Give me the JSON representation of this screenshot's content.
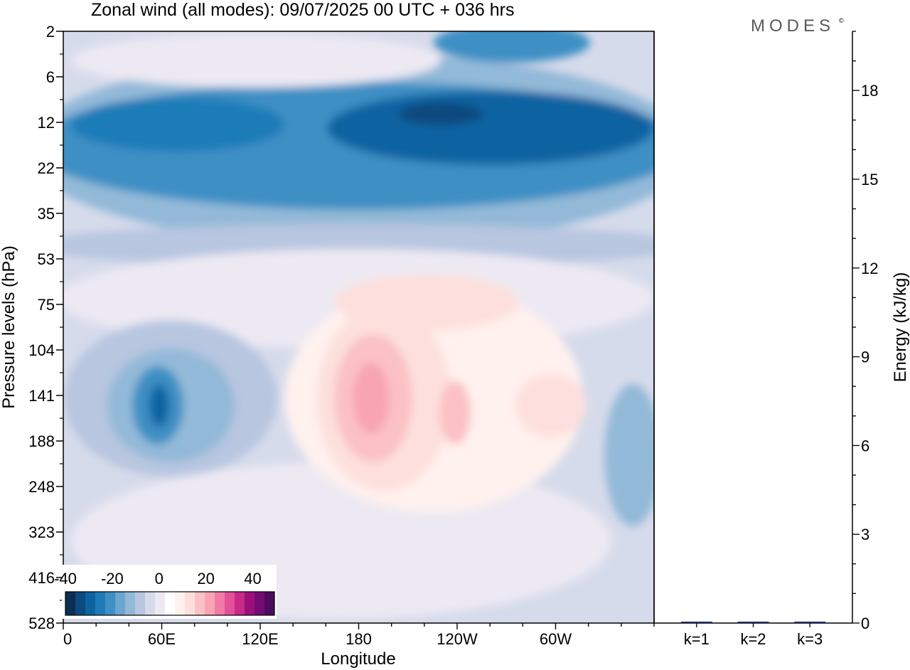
{
  "title": "Zonal wind (all modes):  09/07/2025  00 UTC  + 036 hrs",
  "brand": "MODES",
  "brand_mark": "©",
  "chart_data": [
    {
      "type": "heatmap",
      "title": "Zonal wind (all modes):  09/07/2025  00 UTC  + 036 hrs",
      "xlabel": "Longitude",
      "ylabel": "Pressure levels (hPa)",
      "x_ticks": [
        {
          "lon": 0,
          "label": "0"
        },
        {
          "lon": 60,
          "label": "60E"
        },
        {
          "lon": 120,
          "label": "120E"
        },
        {
          "lon": 180,
          "label": "180"
        },
        {
          "lon": 240,
          "label": "120W"
        },
        {
          "lon": 300,
          "label": "60W"
        }
      ],
      "xlim": [
        0,
        360
      ],
      "y_levels": [
        "2",
        "6",
        "12",
        "22",
        "35",
        "53",
        "75",
        "104",
        "141",
        "188",
        "248",
        "323",
        "416",
        "528"
      ],
      "y_scale": "categorical pressure levels (top 2 hPa, bottom 528 hPa)",
      "colorbar": {
        "labels": [
          "-40",
          "-20",
          "0",
          "20",
          "40"
        ],
        "vmin": -40,
        "vmax": 45,
        "step": 5,
        "placement": "bottom-left",
        "colors": [
          "#0b2f52",
          "#0d4a7f",
          "#0b64a1",
          "#1f7bb8",
          "#3d8fc4",
          "#6aa6d0",
          "#93b9d8",
          "#b8c6e0",
          "#d6dbeb",
          "#ece9f3",
          "#ffffff",
          "#fff1ee",
          "#fde0dd",
          "#fbc1c4",
          "#f8a4b3",
          "#f27aa6",
          "#e4509a",
          "#c72a87",
          "#9e0f7a",
          "#740b72",
          "#4b0c5f"
        ]
      },
      "features": [
        {
          "name": "stratospheric easterly jet",
          "lon": [
            0,
            360
          ],
          "p": [
            6,
            35
          ],
          "min_value": -35
        },
        {
          "name": "easterly core near 60E",
          "lon": 58,
          "p": 141,
          "min_value": -35
        },
        {
          "name": "westerly core near 180",
          "lon": 186,
          "p": 141,
          "max_value": 20
        },
        {
          "name": "westerly maximum near 120W",
          "lon": 238,
          "p": 141,
          "max_value": 10
        },
        {
          "name": "westerly region near 80W",
          "lon": 280,
          "p": 141,
          "max_value": 5
        }
      ]
    },
    {
      "type": "bar",
      "ylabel": "Energy (kJ/kg)",
      "categories": [
        "k=1",
        "k=2",
        "k=3"
      ],
      "values": [
        0.04,
        0.02,
        0.02
      ],
      "ylim": [
        0,
        20
      ],
      "y_ticks": [
        "0",
        "3",
        "6",
        "9",
        "12",
        "15",
        "18"
      ],
      "y_axis_side": "right",
      "bar_color": "#1f2a6e"
    }
  ]
}
